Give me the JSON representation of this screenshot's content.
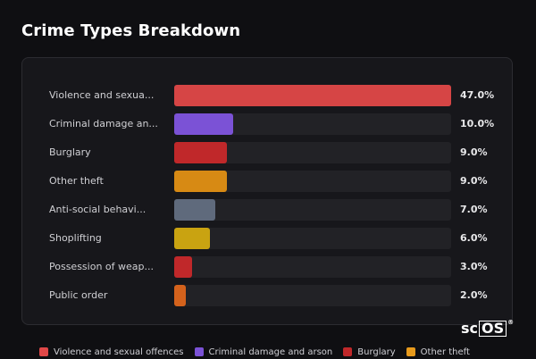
{
  "title": "Crime Types Breakdown",
  "chart_data": {
    "type": "bar",
    "orientation": "horizontal",
    "unit": "%",
    "xlim": [
      0,
      47
    ],
    "categories": [
      "Violence and sexua...",
      "Criminal damage an...",
      "Burglary",
      "Other theft",
      "Anti-social behavi...",
      "Shoplifting",
      "Possession of weap...",
      "Public order"
    ],
    "values": [
      47.0,
      10.0,
      9.0,
      9.0,
      7.0,
      6.0,
      3.0,
      2.0
    ],
    "value_labels": [
      "47.0%",
      "10.0%",
      "9.0%",
      "9.0%",
      "7.0%",
      "6.0%",
      "3.0%",
      "2.0%"
    ],
    "colors": [
      "#d64545",
      "#7b52d6",
      "#c0282a",
      "#d78a14",
      "#5f6a7c",
      "#c9a311",
      "#c0282a",
      "#d4621c"
    ]
  },
  "legend": [
    {
      "label": "Violence and sexual offences",
      "color": "#e04848"
    },
    {
      "label": "Criminal damage and arson",
      "color": "#7b52d6"
    },
    {
      "label": "Burglary",
      "color": "#c0282a"
    },
    {
      "label": "Other theft",
      "color": "#e79a1c"
    }
  ],
  "watermark": {
    "prefix": "sc",
    "boxed": "OS",
    "mark": "®"
  }
}
